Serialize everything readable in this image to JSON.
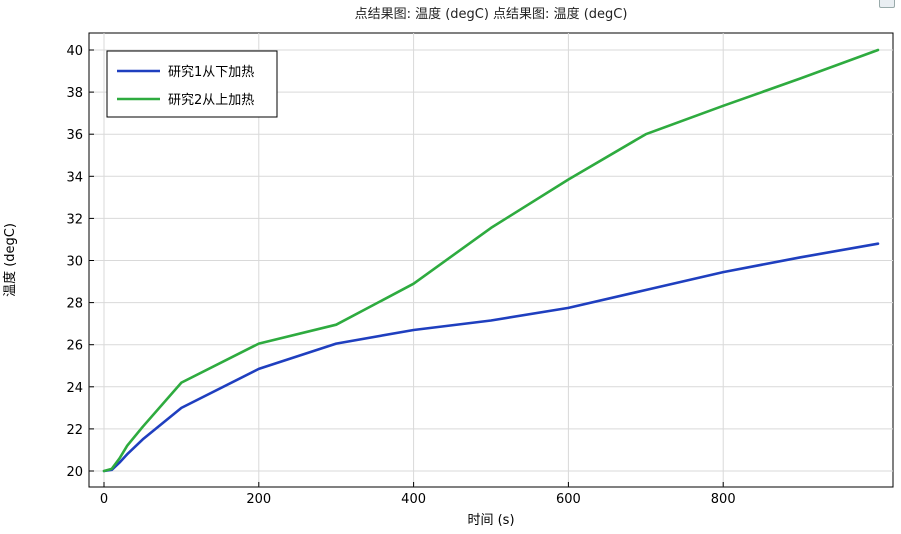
{
  "chart_data": {
    "type": "line",
    "title": "点结果图: 温度 (degC)  点结果图: 温度 (degC)",
    "xlabel": "时间 (s)",
    "ylabel": "温度 (degC)",
    "xlim": [
      0,
      1000
    ],
    "ylim": [
      20,
      40
    ],
    "x_ticks": [
      0,
      200,
      400,
      600,
      800
    ],
    "y_ticks": [
      20,
      22,
      24,
      26,
      28,
      30,
      32,
      34,
      36,
      38,
      40
    ],
    "grid": true,
    "legend_position": "top-left",
    "series": [
      {
        "name": "研究1从下加热",
        "color": "#1f3fbf",
        "x": [
          0,
          10,
          20,
          30,
          50,
          100,
          200,
          300,
          400,
          500,
          600,
          700,
          800,
          900,
          1000
        ],
        "y": [
          20.0,
          20.05,
          20.4,
          20.8,
          21.5,
          23.0,
          24.85,
          26.05,
          26.7,
          27.15,
          27.75,
          28.6,
          29.45,
          30.15,
          30.8
        ]
      },
      {
        "name": "研究2从上加热",
        "color": "#2eab3f",
        "x": [
          0,
          10,
          20,
          30,
          50,
          100,
          200,
          300,
          400,
          500,
          600,
          700,
          800,
          900,
          1000
        ],
        "y": [
          20.0,
          20.1,
          20.6,
          21.2,
          22.1,
          24.2,
          26.05,
          26.95,
          28.9,
          31.55,
          33.85,
          36.0,
          37.35,
          38.65,
          40.0
        ]
      }
    ]
  }
}
